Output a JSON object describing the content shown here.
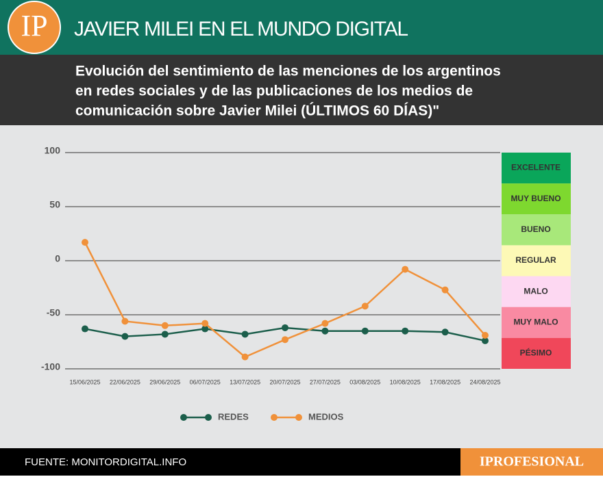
{
  "header": {
    "logo": "IP",
    "title": "JAVIER MILEI EN EL MUNDO DIGITAL",
    "subtitle": [
      "Evolución del sentimiento de las menciones de los argentinos",
      "en redes sociales y de las publicaciones de los medios de",
      "comunicación sobre Javier Milei (ÚLTIMOS 60 DÍAS)\""
    ]
  },
  "chart_data": {
    "type": "line",
    "categories": [
      "15/06/2025",
      "22/06/2025",
      "29/06/2025",
      "06/07/2025",
      "13/07/2025",
      "20/07/2025",
      "27/07/2025",
      "03/08/2025",
      "10/08/2025",
      "17/08/2025",
      "24/08/2025"
    ],
    "series": [
      {
        "name": "REDES",
        "color": "#1b5e4b",
        "values": [
          -63,
          -70,
          -68,
          -63,
          -68,
          -62,
          -65,
          -65,
          -65,
          -66,
          -74
        ]
      },
      {
        "name": "MEDIOS",
        "color": "#f0913a",
        "values": [
          17,
          -56,
          -60,
          -58,
          -89,
          -73,
          -58,
          -42,
          -8,
          -27,
          -69
        ]
      }
    ],
    "ylim": [
      -100,
      100
    ],
    "yticks": [
      -100,
      -50,
      0,
      50,
      100
    ],
    "grid": true,
    "scale": [
      {
        "label": "EXCELENTE",
        "color": "#0aa65a"
      },
      {
        "label": "MUY BUENO",
        "color": "#7ed82f"
      },
      {
        "label": "BUENO",
        "color": "#a8e87a"
      },
      {
        "label": "REGULAR",
        "color": "#fdf9b6"
      },
      {
        "label": "MALO",
        "color": "#fdd8f2"
      },
      {
        "label": "MUY MALO",
        "color": "#f98aa2"
      },
      {
        "label": "PÉSIMO",
        "color": "#f0475a"
      }
    ]
  },
  "footer": {
    "source": "FUENTE: MONITORDIGITAL.INFO",
    "brand": "IPROFESIONAL"
  }
}
